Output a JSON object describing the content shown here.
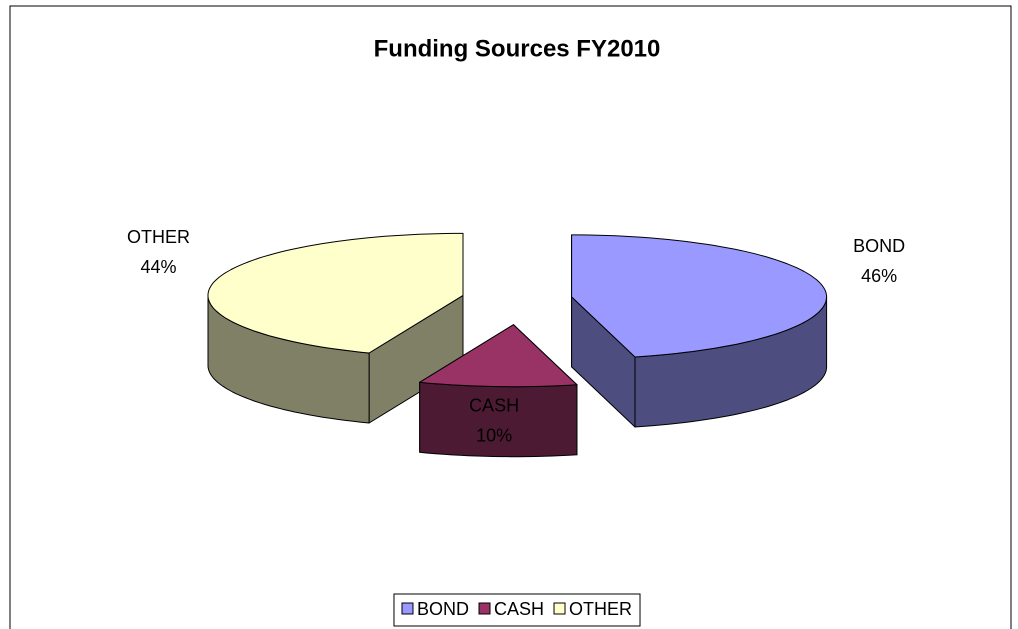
{
  "chart_data": {
    "type": "pie",
    "title": "Funding Sources FY2010",
    "categories": [
      "BOND",
      "CASH",
      "OTHER"
    ],
    "values": [
      46,
      10,
      44
    ],
    "value_labels": [
      "46%",
      "10%",
      "44%"
    ],
    "colors": [
      "#9999ff",
      "#993366",
      "#ffffcc"
    ],
    "legend": "bottom"
  }
}
